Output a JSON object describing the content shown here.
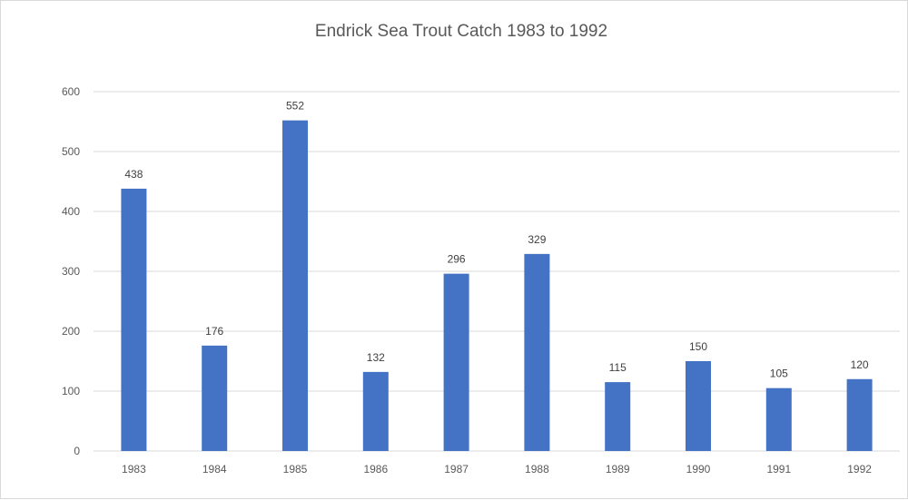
{
  "chart_data": {
    "type": "bar",
    "title": "Endrick Sea Trout Catch 1983 to 1992",
    "xlabel": "",
    "ylabel": "",
    "categories": [
      "1983",
      "1984",
      "1985",
      "1986",
      "1987",
      "1988",
      "1989",
      "1990",
      "1991",
      "1992"
    ],
    "values": [
      438,
      176,
      552,
      132,
      296,
      329,
      115,
      150,
      105,
      120
    ],
    "ylim": [
      0,
      600
    ],
    "yticks": [
      0,
      100,
      200,
      300,
      400,
      500,
      600
    ],
    "grid": true,
    "legend": "none",
    "bar_color": "#4472c4",
    "data_labels": true
  }
}
